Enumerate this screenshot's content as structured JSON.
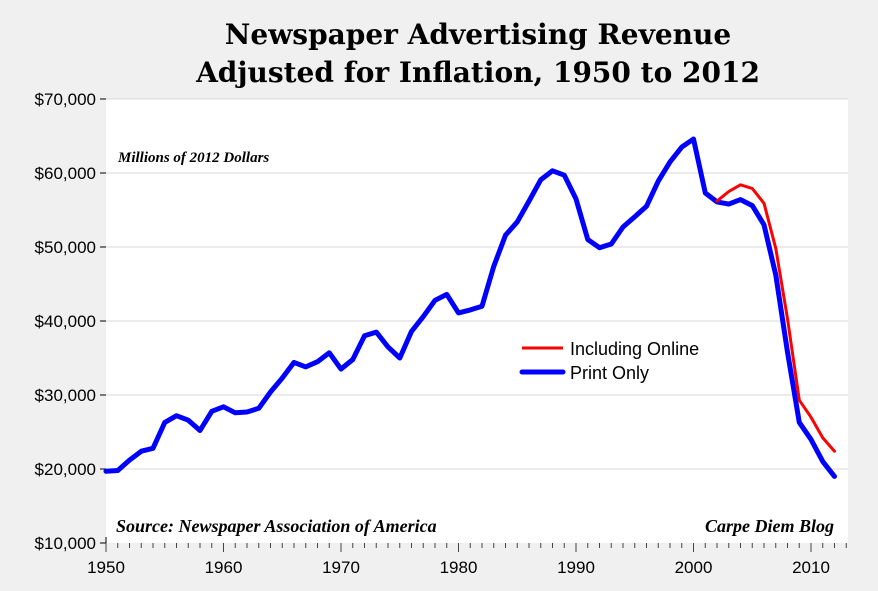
{
  "chart_data": {
    "type": "line",
    "title": "Newspaper Advertising Revenue",
    "subtitle": "Adjusted for Inflation, 1950 to 2012",
    "xlabel": "",
    "ylabel": "",
    "units_note": "Millions of 2012 Dollars",
    "source": "Source: Newspaper Association of America",
    "credit": "Carpe Diem Blog",
    "xlim": [
      1950,
      2013
    ],
    "ylim": [
      10000,
      70000
    ],
    "x_ticks": [
      "1950",
      "1960",
      "1970",
      "1980",
      "1990",
      "2000",
      "2010"
    ],
    "y_ticks": [
      "$10,000",
      "$20,000",
      "$30,000",
      "$40,000",
      "$50,000",
      "$60,000",
      "$70,000"
    ],
    "grid": "horizontal",
    "legend_position": "center-right",
    "series": [
      {
        "name": "Including Online",
        "color": "#ff0000",
        "x": [
          2002,
          2003,
          2004,
          2005,
          2006,
          2007,
          2008,
          2009,
          2010,
          2011,
          2012
        ],
        "y": [
          56200,
          57500,
          58400,
          57900,
          55900,
          49800,
          40300,
          29300,
          27000,
          24200,
          22400
        ]
      },
      {
        "name": "Print Only",
        "color": "#0000ff",
        "x": [
          1950,
          1951,
          1952,
          1953,
          1954,
          1955,
          1956,
          1957,
          1958,
          1959,
          1960,
          1961,
          1962,
          1963,
          1964,
          1965,
          1966,
          1967,
          1968,
          1969,
          1970,
          1971,
          1972,
          1973,
          1974,
          1975,
          1976,
          1977,
          1978,
          1979,
          1980,
          1981,
          1982,
          1983,
          1984,
          1985,
          1986,
          1987,
          1988,
          1989,
          1990,
          1991,
          1992,
          1993,
          1994,
          1995,
          1996,
          1997,
          1998,
          1999,
          2000,
          2001,
          2002,
          2003,
          2004,
          2005,
          2006,
          2007,
          2008,
          2009,
          2010,
          2011,
          2012
        ],
        "y": [
          19700,
          19800,
          21200,
          22400,
          22800,
          26300,
          27200,
          26600,
          25200,
          27800,
          28400,
          27600,
          27700,
          28200,
          30400,
          32300,
          34400,
          33800,
          34500,
          35700,
          33500,
          34800,
          38000,
          38500,
          36500,
          35000,
          38600,
          40600,
          42800,
          43600,
          41100,
          41500,
          42000,
          47400,
          51600,
          53400,
          56200,
          59100,
          60300,
          59700,
          56500,
          51000,
          49900,
          50400,
          52700,
          54100,
          55500,
          58900,
          61500,
          63500,
          64600,
          57300,
          56100,
          55800,
          56400,
          55600,
          53000,
          46200,
          35800,
          26300,
          24000,
          21000,
          19000
        ]
      }
    ]
  }
}
